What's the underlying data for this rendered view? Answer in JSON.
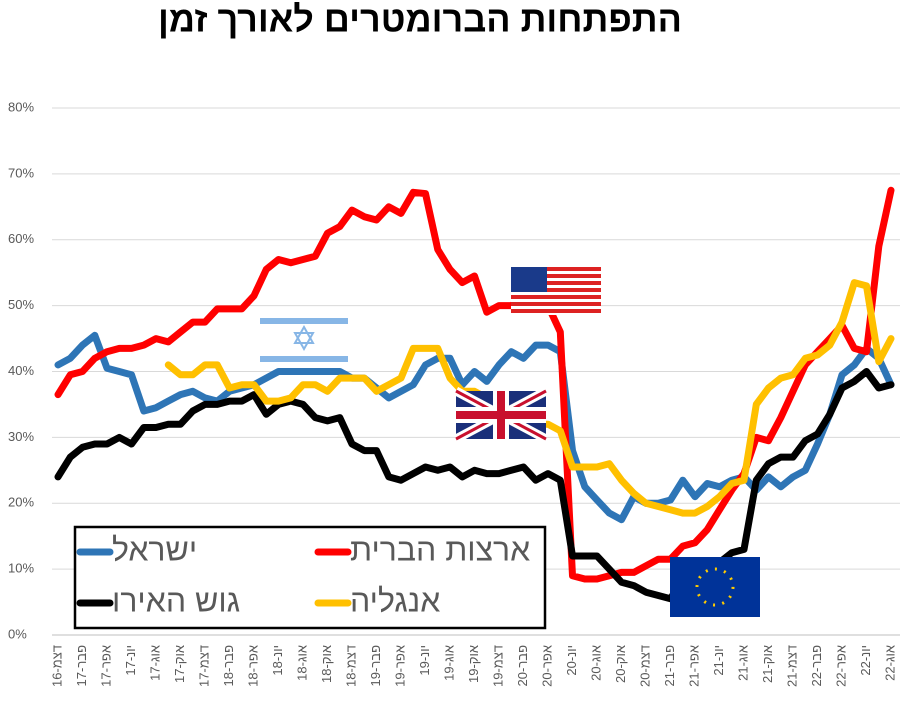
{
  "chart_data": {
    "type": "line",
    "title": "התפתחות הברומטרים לאורך זמן",
    "categories": [
      "דצמ-16",
      null,
      "פבר-17",
      null,
      "אפר-17",
      null,
      "יונ-17",
      null,
      "אוג-17",
      null,
      "אוק-17",
      null,
      "דצמ-17",
      null,
      "פבר-18",
      null,
      "אפר-18",
      null,
      "יונ-18",
      null,
      "אוג-18",
      null,
      "אוק-18",
      null,
      "דצמ-18",
      null,
      "פבר-19",
      null,
      "אפר-19",
      null,
      "יונ-19",
      null,
      "אוג-19",
      null,
      "אוק-19",
      null,
      "דצמ-19",
      null,
      "פבר-20",
      null,
      "אפר-20",
      null,
      "יונ-20",
      null,
      "אוג-20",
      null,
      "אוק-20",
      null,
      "דצמ-20",
      null,
      "פבר-21",
      null,
      "אפר-21",
      null,
      "יונ-21",
      null,
      "אוג-21",
      null,
      "אוק-21",
      null,
      "דצמ-21",
      null,
      "פבר-22",
      null,
      "אפר-22",
      null,
      "יונ-22",
      null,
      "אוג-22"
    ],
    "series": [
      {
        "name": "ישראל",
        "color": "#2e75b6",
        "values": [
          41,
          42,
          44,
          45.5,
          40.5,
          40,
          39.5,
          34,
          34.5,
          35.5,
          36.5,
          37,
          36,
          35.5,
          37,
          37.5,
          38,
          39,
          40,
          40,
          40,
          40,
          40,
          40,
          39,
          39,
          37.5,
          36,
          37,
          38,
          41,
          42,
          42,
          38,
          40,
          38.5,
          41,
          43,
          42,
          44,
          44,
          43,
          28,
          22.5,
          20.5,
          18.5,
          17.5,
          21,
          20,
          20,
          20.5,
          23.5,
          21,
          23,
          22.5,
          23.5,
          24,
          22,
          24,
          22.5,
          24,
          25,
          29,
          33.5,
          39.5,
          41,
          43.5,
          42,
          38
        ]
      },
      {
        "name": "ארצות הברית",
        "color": "#ff0000",
        "values": [
          36.5,
          39.5,
          40,
          42,
          43,
          43.5,
          43.5,
          44,
          45,
          44.5,
          46,
          47.5,
          47.5,
          49.5,
          49.5,
          49.5,
          51.5,
          55.5,
          57,
          56.5,
          57,
          57.5,
          61,
          62,
          64.5,
          63.5,
          63,
          65,
          64,
          67.2,
          67,
          58.5,
          55.5,
          53.5,
          54.5,
          49,
          50,
          50,
          51,
          50,
          50,
          46,
          9,
          8.5,
          8.5,
          9,
          9.5,
          9.5,
          10.5,
          11.5,
          11.5,
          13.5,
          14,
          16,
          19,
          22,
          24.5,
          30,
          29.5,
          33,
          37,
          41,
          43,
          45,
          47,
          43.5,
          43,
          59,
          67.5
        ]
      },
      {
        "name": "גוש האירו",
        "color": "#000000",
        "values": [
          24,
          27,
          28.5,
          29,
          29,
          30,
          29,
          31.5,
          31.5,
          32,
          32,
          34,
          35,
          35,
          35.5,
          35.5,
          36.5,
          33.5,
          35,
          35.5,
          35,
          33,
          32.5,
          33,
          29,
          28,
          28,
          24,
          23.5,
          24.5,
          25.5,
          25,
          25.5,
          24,
          25,
          24.5,
          24.5,
          25,
          25.5,
          23.5,
          24.5,
          23.5,
          12,
          12,
          12,
          10,
          8,
          7.5,
          6.5,
          6,
          5.5,
          8.5,
          9.5,
          10,
          11,
          12.5,
          13,
          23.5,
          26,
          27,
          27,
          29.5,
          30.5,
          33.5,
          37.5,
          38.5,
          40,
          37.5,
          38
        ]
      },
      {
        "name": "אנגליה",
        "color": "#ffc000",
        "values": [
          null,
          null,
          null,
          null,
          null,
          null,
          null,
          null,
          null,
          41,
          39.5,
          39.5,
          41,
          41,
          37.5,
          38,
          38,
          35.5,
          35.5,
          36,
          38,
          38,
          37,
          39,
          39,
          39,
          37,
          38,
          39,
          43.5,
          43.5,
          43.5,
          39,
          37,
          37,
          36,
          35,
          34,
          33,
          32,
          32,
          31,
          25.5,
          25.5,
          25.5,
          26,
          23.5,
          21.5,
          20,
          19.5,
          19,
          18.5,
          18.5,
          19.5,
          21,
          23,
          23.5,
          35,
          37.5,
          39,
          39.5,
          42,
          42.5,
          44,
          47.5,
          53.5,
          53,
          41.5,
          45
        ]
      }
    ],
    "ylim": [
      0,
      80
    ],
    "yticks": [
      {
        "value": 0,
        "label": "0%"
      },
      {
        "value": 10,
        "label": "10%"
      },
      {
        "value": 20,
        "label": "20%"
      },
      {
        "value": 30,
        "label": "30%"
      },
      {
        "value": 40,
        "label": "40%"
      },
      {
        "value": 50,
        "label": "50%"
      },
      {
        "value": 60,
        "label": "60%"
      },
      {
        "value": 70,
        "label": "70%"
      },
      {
        "value": 80,
        "label": "80%"
      }
    ],
    "grid": true,
    "legend": "lower left"
  }
}
